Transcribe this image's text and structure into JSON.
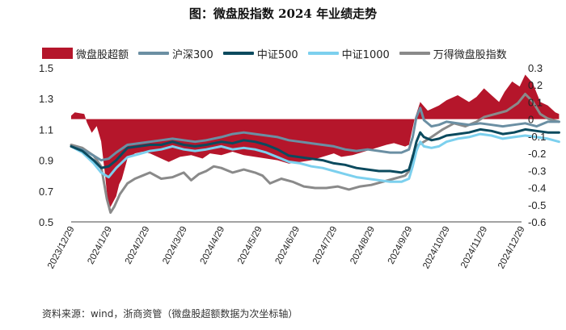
{
  "chart_data": {
    "type": "line",
    "title": "图：微盘股指数 2024 年业绩走势",
    "source": "资料来源：wind，浙商资管（微盘股超额数据为次坐标轴）",
    "x_labels": [
      "2023/12/29",
      "2024/1/29",
      "2024/2/29",
      "2024/3/29",
      "2024/4/29",
      "2024/5/29",
      "2024/6/29",
      "2024/7/29",
      "2024/8/29",
      "2024/9/29",
      "2024/10/29",
      "2024/11/29",
      "2024/12/29"
    ],
    "y_left": {
      "min": 0.5,
      "max": 1.5,
      "ticks": [
        "1.5",
        "1.3",
        "1.1",
        "0.9",
        "0.7",
        "0.5"
      ]
    },
    "y_right": {
      "min": -0.6,
      "max": 0.3,
      "ticks": [
        "0.3",
        "0.2",
        "0.1",
        "0",
        "-0.1",
        "-0.2",
        "-0.3",
        "-0.4",
        "-0.5",
        "-0.6"
      ]
    },
    "series": [
      {
        "name": "微盘股超额",
        "type": "area",
        "axis": "right",
        "color": "#b5162b",
        "values": [
          [
            0,
            0.02
          ],
          [
            0.1,
            0.04
          ],
          [
            0.35,
            0.03
          ],
          [
            0.42,
            -0.02
          ],
          [
            0.55,
            -0.08
          ],
          [
            0.68,
            -0.04
          ],
          [
            0.8,
            -0.13
          ],
          [
            0.9,
            -0.32
          ],
          [
            1.0,
            -0.53
          ],
          [
            1.08,
            -0.5
          ],
          [
            1.2,
            -0.45
          ],
          [
            1.28,
            -0.38
          ],
          [
            1.35,
            -0.35
          ],
          [
            1.5,
            -0.23
          ],
          [
            1.7,
            -0.2
          ],
          [
            1.9,
            -0.19
          ],
          [
            2.1,
            -0.2
          ],
          [
            2.3,
            -0.22
          ],
          [
            2.6,
            -0.25
          ],
          [
            2.9,
            -0.22
          ],
          [
            3.2,
            -0.21
          ],
          [
            3.5,
            -0.23
          ],
          [
            3.7,
            -0.2
          ],
          [
            4.0,
            -0.21
          ],
          [
            4.3,
            -0.19
          ],
          [
            4.6,
            -0.21
          ],
          [
            4.9,
            -0.22
          ],
          [
            5.2,
            -0.23
          ],
          [
            5.5,
            -0.24
          ],
          [
            5.8,
            -0.26
          ],
          [
            6.1,
            -0.25
          ],
          [
            6.4,
            -0.24
          ],
          [
            6.7,
            -0.22
          ],
          [
            7.0,
            -0.2
          ],
          [
            7.2,
            -0.22
          ],
          [
            7.5,
            -0.21
          ],
          [
            7.8,
            -0.19
          ],
          [
            8.1,
            -0.17
          ],
          [
            8.4,
            -0.15
          ],
          [
            8.6,
            -0.14
          ],
          [
            8.9,
            -0.16
          ],
          [
            9.0,
            -0.15
          ],
          [
            9.15,
            0.0
          ],
          [
            9.3,
            0.1
          ],
          [
            9.5,
            0.05
          ],
          [
            9.8,
            0.08
          ],
          [
            10.0,
            0.11
          ],
          [
            10.3,
            0.14
          ],
          [
            10.6,
            0.1
          ],
          [
            10.8,
            0.13
          ],
          [
            11.0,
            0.18
          ],
          [
            11.2,
            0.14
          ],
          [
            11.4,
            0.1
          ],
          [
            11.55,
            0.16
          ],
          [
            11.75,
            0.22
          ],
          [
            11.95,
            0.19
          ],
          [
            12.1,
            0.26
          ],
          [
            12.3,
            0.21
          ],
          [
            12.5,
            0.1
          ],
          [
            12.7,
            0.08
          ],
          [
            12.9,
            0.04
          ],
          [
            13.0,
            0.03
          ]
        ]
      },
      {
        "name": "沪深300",
        "type": "line",
        "axis": "left",
        "color": "#6b8fa3",
        "values": [
          [
            0,
            0.99
          ],
          [
            0.3,
            0.97
          ],
          [
            0.6,
            0.93
          ],
          [
            0.8,
            0.9
          ],
          [
            1.0,
            0.91
          ],
          [
            1.2,
            0.95
          ],
          [
            1.5,
            1.0
          ],
          [
            1.8,
            1.01
          ],
          [
            2.1,
            1.02
          ],
          [
            2.4,
            1.03
          ],
          [
            2.7,
            1.04
          ],
          [
            3.0,
            1.03
          ],
          [
            3.3,
            1.02
          ],
          [
            3.6,
            1.03
          ],
          [
            4.0,
            1.05
          ],
          [
            4.3,
            1.07
          ],
          [
            4.6,
            1.08
          ],
          [
            4.9,
            1.07
          ],
          [
            5.2,
            1.06
          ],
          [
            5.5,
            1.05
          ],
          [
            5.8,
            1.03
          ],
          [
            6.1,
            1.02
          ],
          [
            6.4,
            1.01
          ],
          [
            6.7,
            1.0
          ],
          [
            7.0,
            0.99
          ],
          [
            7.3,
            0.97
          ],
          [
            7.6,
            0.96
          ],
          [
            7.9,
            0.97
          ],
          [
            8.2,
            0.96
          ],
          [
            8.5,
            0.95
          ],
          [
            8.8,
            0.95
          ],
          [
            9.0,
            0.97
          ],
          [
            9.1,
            1.05
          ],
          [
            9.2,
            1.18
          ],
          [
            9.3,
            1.24
          ],
          [
            9.4,
            1.16
          ],
          [
            9.6,
            1.12
          ],
          [
            9.8,
            1.13
          ],
          [
            10.0,
            1.15
          ],
          [
            10.3,
            1.14
          ],
          [
            10.6,
            1.13
          ],
          [
            10.9,
            1.14
          ],
          [
            11.2,
            1.13
          ],
          [
            11.5,
            1.12
          ],
          [
            11.8,
            1.13
          ],
          [
            12.1,
            1.14
          ],
          [
            12.4,
            1.12
          ],
          [
            12.7,
            1.15
          ],
          [
            13.0,
            1.15
          ]
        ]
      },
      {
        "name": "中证500",
        "type": "line",
        "axis": "left",
        "color": "#0b4a5e",
        "values": [
          [
            0,
            0.99
          ],
          [
            0.3,
            0.96
          ],
          [
            0.6,
            0.9
          ],
          [
            0.8,
            0.85
          ],
          [
            1.0,
            0.86
          ],
          [
            1.2,
            0.9
          ],
          [
            1.5,
            0.98
          ],
          [
            1.8,
            0.99
          ],
          [
            2.1,
            1.0
          ],
          [
            2.4,
            1.0
          ],
          [
            2.7,
            1.02
          ],
          [
            3.0,
            1.0
          ],
          [
            3.3,
            0.99
          ],
          [
            3.6,
            1.0
          ],
          [
            4.0,
            1.02
          ],
          [
            4.3,
            1.01
          ],
          [
            4.6,
            1.03
          ],
          [
            4.9,
            1.02
          ],
          [
            5.2,
            1.0
          ],
          [
            5.5,
            0.97
          ],
          [
            5.8,
            0.93
          ],
          [
            6.1,
            0.92
          ],
          [
            6.4,
            0.91
          ],
          [
            6.7,
            0.9
          ],
          [
            7.0,
            0.88
          ],
          [
            7.3,
            0.87
          ],
          [
            7.6,
            0.85
          ],
          [
            7.9,
            0.84
          ],
          [
            8.2,
            0.83
          ],
          [
            8.5,
            0.83
          ],
          [
            8.8,
            0.82
          ],
          [
            9.0,
            0.84
          ],
          [
            9.1,
            0.92
          ],
          [
            9.2,
            1.02
          ],
          [
            9.3,
            1.08
          ],
          [
            9.4,
            1.05
          ],
          [
            9.6,
            1.03
          ],
          [
            9.8,
            1.04
          ],
          [
            10.0,
            1.06
          ],
          [
            10.3,
            1.07
          ],
          [
            10.6,
            1.08
          ],
          [
            10.9,
            1.1
          ],
          [
            11.2,
            1.09
          ],
          [
            11.5,
            1.07
          ],
          [
            11.8,
            1.08
          ],
          [
            12.1,
            1.1
          ],
          [
            12.4,
            1.09
          ],
          [
            12.7,
            1.08
          ],
          [
            13.0,
            1.08
          ]
        ]
      },
      {
        "name": "中证1000",
        "type": "line",
        "axis": "left",
        "color": "#7cd0ee",
        "values": [
          [
            0,
            0.99
          ],
          [
            0.3,
            0.95
          ],
          [
            0.6,
            0.88
          ],
          [
            0.8,
            0.82
          ],
          [
            1.0,
            0.79
          ],
          [
            1.2,
            0.85
          ],
          [
            1.5,
            0.92
          ],
          [
            1.8,
            0.94
          ],
          [
            2.1,
            0.96
          ],
          [
            2.4,
            0.97
          ],
          [
            2.7,
            0.99
          ],
          [
            3.0,
            0.97
          ],
          [
            3.3,
            0.96
          ],
          [
            3.6,
            0.97
          ],
          [
            4.0,
            0.99
          ],
          [
            4.3,
            0.97
          ],
          [
            4.6,
            0.98
          ],
          [
            4.9,
            0.97
          ],
          [
            5.2,
            0.95
          ],
          [
            5.5,
            0.92
          ],
          [
            5.8,
            0.89
          ],
          [
            6.1,
            0.88
          ],
          [
            6.4,
            0.86
          ],
          [
            6.7,
            0.85
          ],
          [
            7.0,
            0.83
          ],
          [
            7.3,
            0.81
          ],
          [
            7.6,
            0.79
          ],
          [
            7.9,
            0.78
          ],
          [
            8.2,
            0.77
          ],
          [
            8.5,
            0.76
          ],
          [
            8.8,
            0.76
          ],
          [
            9.0,
            0.78
          ],
          [
            9.1,
            0.86
          ],
          [
            9.2,
            0.96
          ],
          [
            9.3,
            1.02
          ],
          [
            9.4,
            0.99
          ],
          [
            9.6,
            0.98
          ],
          [
            9.8,
            0.99
          ],
          [
            10.0,
            1.02
          ],
          [
            10.3,
            1.04
          ],
          [
            10.6,
            1.05
          ],
          [
            10.9,
            1.07
          ],
          [
            11.2,
            1.06
          ],
          [
            11.5,
            1.04
          ],
          [
            11.8,
            1.05
          ],
          [
            12.1,
            1.06
          ],
          [
            12.4,
            1.05
          ],
          [
            12.7,
            1.04
          ],
          [
            13.0,
            1.02
          ]
        ]
      },
      {
        "name": "万得微盘股指数",
        "type": "line",
        "axis": "left",
        "color": "#8a8a8a",
        "values": [
          [
            0,
            1.0
          ],
          [
            0.3,
            0.98
          ],
          [
            0.6,
            0.93
          ],
          [
            0.8,
            0.86
          ],
          [
            0.95,
            0.65
          ],
          [
            1.05,
            0.56
          ],
          [
            1.15,
            0.6
          ],
          [
            1.3,
            0.68
          ],
          [
            1.5,
            0.75
          ],
          [
            1.7,
            0.78
          ],
          [
            1.9,
            0.8
          ],
          [
            2.1,
            0.82
          ],
          [
            2.4,
            0.78
          ],
          [
            2.7,
            0.79
          ],
          [
            3.0,
            0.82
          ],
          [
            3.2,
            0.77
          ],
          [
            3.4,
            0.81
          ],
          [
            3.6,
            0.83
          ],
          [
            3.8,
            0.86
          ],
          [
            4.0,
            0.85
          ],
          [
            4.3,
            0.82
          ],
          [
            4.6,
            0.84
          ],
          [
            4.9,
            0.82
          ],
          [
            5.1,
            0.8
          ],
          [
            5.3,
            0.75
          ],
          [
            5.6,
            0.78
          ],
          [
            5.9,
            0.76
          ],
          [
            6.2,
            0.73
          ],
          [
            6.5,
            0.72
          ],
          [
            6.8,
            0.72
          ],
          [
            7.1,
            0.73
          ],
          [
            7.4,
            0.71
          ],
          [
            7.7,
            0.73
          ],
          [
            8.0,
            0.74
          ],
          [
            8.3,
            0.76
          ],
          [
            8.6,
            0.78
          ],
          [
            8.9,
            0.8
          ],
          [
            9.0,
            0.83
          ],
          [
            9.1,
            0.93
          ],
          [
            9.25,
            1.0
          ],
          [
            9.4,
            1.02
          ],
          [
            9.6,
            1.05
          ],
          [
            9.9,
            1.1
          ],
          [
            10.2,
            1.14
          ],
          [
            10.5,
            1.12
          ],
          [
            10.8,
            1.15
          ],
          [
            11.0,
            1.18
          ],
          [
            11.3,
            1.2
          ],
          [
            11.6,
            1.22
          ],
          [
            11.9,
            1.27
          ],
          [
            12.1,
            1.33
          ],
          [
            12.3,
            1.28
          ],
          [
            12.5,
            1.2
          ],
          [
            12.7,
            1.17
          ],
          [
            13.0,
            1.15
          ]
        ]
      }
    ]
  }
}
